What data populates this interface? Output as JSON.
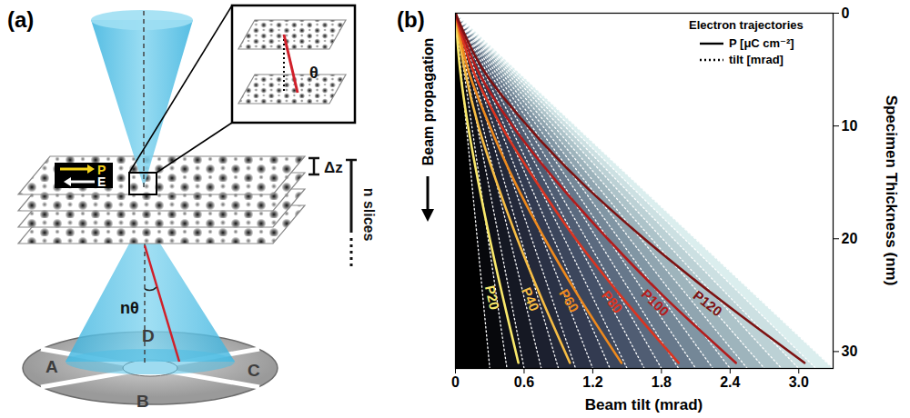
{
  "chart_data": {
    "type": "line",
    "panel_label": "(b)",
    "x_label": "Beam tilt (mrad)",
    "y_label": "Specimen Thickness (nm)",
    "xlim": [
      0,
      3.3
    ],
    "xticks": [
      0,
      0.6,
      1.2,
      1.8,
      2.4,
      {
        "value": 3,
        "label": "3.0"
      }
    ],
    "ylim": [
      0,
      31.5
    ],
    "yticks": [
      0,
      10,
      20,
      30
    ],
    "annotations": [
      {
        "text": "Beam propagation"
      }
    ],
    "legend": "top-right",
    "legend_title": "Electron trajectories",
    "legend_entries": [
      {
        "label": "P [μC cm⁻²]",
        "line_style": "solid"
      },
      {
        "label": "tilt [mrad]",
        "line_style": "dotted"
      }
    ],
    "series": [
      {
        "name": "P20",
        "color": "#f9e86b",
        "line_style": "solid",
        "x": [
          0,
          0.04,
          0.11,
          0.2,
          0.3,
          0.41,
          0.55
        ],
        "y": [
          0,
          5,
          10,
          15,
          20,
          25,
          31
        ]
      },
      {
        "name": "P40",
        "color": "#f6bd45",
        "line_style": "solid",
        "x": [
          0,
          0.08,
          0.2,
          0.36,
          0.54,
          0.74,
          1.0
        ],
        "y": [
          0,
          5,
          10,
          15,
          20,
          25,
          31
        ]
      },
      {
        "name": "P60",
        "color": "#ee8a1e",
        "line_style": "solid",
        "x": [
          0,
          0.11,
          0.3,
          0.52,
          0.78,
          1.07,
          1.45
        ],
        "y": [
          0,
          5,
          10,
          15,
          20,
          25,
          31
        ]
      },
      {
        "name": "P80",
        "color": "#dc3420",
        "line_style": "solid",
        "x": [
          0,
          0.15,
          0.4,
          0.71,
          1.05,
          1.44,
          1.95
        ],
        "y": [
          0,
          5,
          10,
          15,
          20,
          25,
          31
        ]
      },
      {
        "name": "P100",
        "color": "#b31b1b",
        "line_style": "solid",
        "x": [
          0,
          0.19,
          0.5,
          0.89,
          1.33,
          1.81,
          2.45
        ],
        "y": [
          0,
          5,
          10,
          15,
          20,
          25,
          31
        ]
      },
      {
        "name": "P120",
        "color": "#7c1111",
        "line_style": "solid",
        "x": [
          0,
          0.24,
          0.63,
          1.1,
          1.65,
          2.26,
          3.05
        ],
        "y": [
          0,
          5,
          10,
          15,
          20,
          25,
          31
        ]
      }
    ],
    "tilt_lines": {
      "line_style": "dotted",
      "color": "#ffffff",
      "start": [
        0,
        0
      ],
      "x_end": [
        0.3,
        0.45,
        0.6,
        0.75,
        0.9,
        1.05,
        1.2,
        1.35,
        1.5,
        1.65,
        1.8,
        1.95,
        2.1,
        2.25,
        2.4,
        2.55,
        2.7,
        2.85,
        3.0,
        3.15,
        3.3
      ],
      "y_end": 31.5
    }
  },
  "diagram": {
    "panel_label": "(a)",
    "polarization": "P",
    "field": "E",
    "inset_angle": "θ",
    "slice_thickness": "Δz",
    "slice_count": "n slices",
    "exit_angle": "nθ",
    "detector_segments": [
      "A",
      "B",
      "C",
      "D"
    ]
  }
}
